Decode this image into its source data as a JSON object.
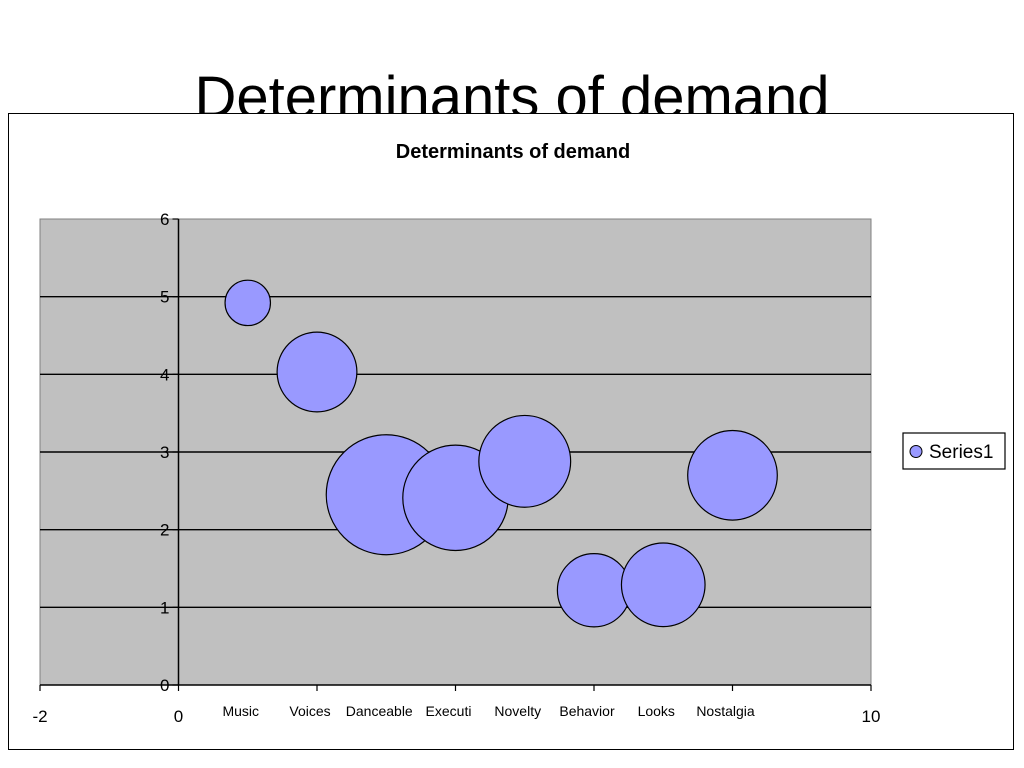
{
  "slide": {
    "title": "Determinants of demand"
  },
  "chart_data": {
    "type": "bubble",
    "title": "Determinants of demand",
    "xlabel": "",
    "ylabel": "",
    "xlim": [
      -2,
      10
    ],
    "ylim": [
      0,
      6
    ],
    "x_ticks": [
      -2,
      0,
      10
    ],
    "y_ticks": [
      0,
      1,
      2,
      3,
      4,
      5,
      6
    ],
    "grid": true,
    "legend_position": "right",
    "plot_background": "#c0c0c0",
    "bubble_color": "#9999ff",
    "series": [
      {
        "name": "Series1",
        "points": [
          {
            "label": "Music",
            "x": 1,
            "y": 4.92,
            "size": 1.0
          },
          {
            "label": "Voices",
            "x": 2,
            "y": 4.03,
            "size": 3.1
          },
          {
            "label": "Danceable",
            "x": 3,
            "y": 2.45,
            "size": 7.0
          },
          {
            "label": "Executi",
            "x": 4,
            "y": 2.41,
            "size": 5.4
          },
          {
            "label": "Novelty",
            "x": 5,
            "y": 2.88,
            "size": 4.1
          },
          {
            "label": "Behavior",
            "x": 6,
            "y": 1.22,
            "size": 2.6
          },
          {
            "label": "Looks",
            "x": 7,
            "y": 1.29,
            "size": 3.4
          },
          {
            "label": "Nostalgia",
            "x": 8,
            "y": 2.7,
            "size": 3.9
          }
        ]
      }
    ]
  }
}
